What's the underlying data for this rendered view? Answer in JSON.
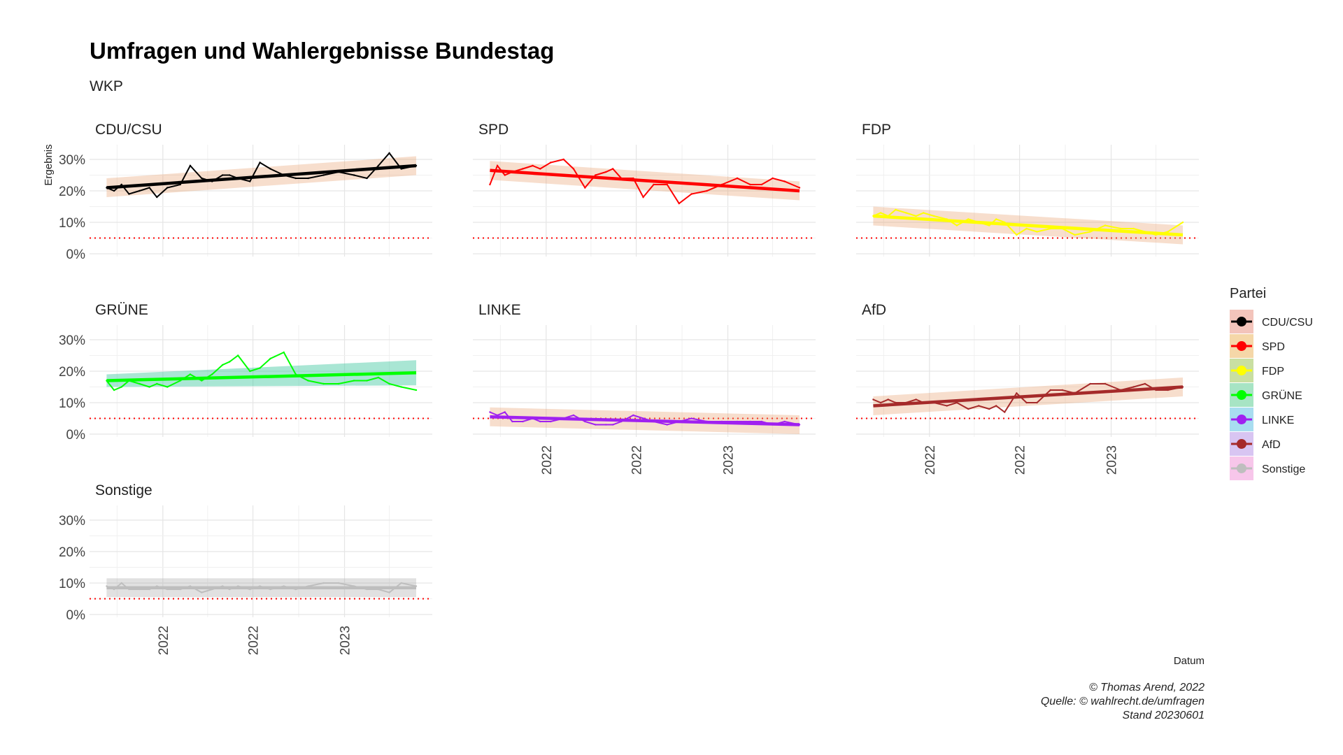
{
  "title": "Umfragen und Wahlergebnisse Bundestag",
  "subtitle": "WKP",
  "caption": [
    "© Thomas Arend, 2022",
    "Quelle: © wahlrecht.de/umfragen",
    "Stand 20230601"
  ],
  "colors": {
    "CDU/CSU": "#000000",
    "SPD": "#ff0000",
    "FDP": "#ffff00",
    "GRÜNE": "#00ff00",
    "LINKE": "#a020f0",
    "AfD": "#a52a2a",
    "Sonstige": "#bebebe",
    "threshold": "#ff0000",
    "grid": "#e5e5e5"
  },
  "chart_data": {
    "type": "line",
    "facet_layout": "wrap 3 columns",
    "xlabel": "Datum",
    "ylabel": "Ergebnis",
    "ylim": [
      0,
      32
    ],
    "y_ticks": [
      0,
      10,
      20,
      30
    ],
    "y_tick_labels": [
      "0%",
      "10%",
      "20%",
      "30%"
    ],
    "x_range": [
      "2021-09-01",
      "2023-06-01"
    ],
    "x_tick_dates": [
      "2022-01-01",
      "2022-07-01",
      "2023-01-01"
    ],
    "x_tick_labels": [
      "2022",
      "2022",
      "2023"
    ],
    "threshold": 5,
    "grid": true,
    "legend_title": "Partei",
    "legend_position": "right",
    "series": [
      {
        "name": "CDU/CSU",
        "x": [
          "2021-09-10",
          "2021-09-25",
          "2021-10-10",
          "2021-10-25",
          "2021-11-15",
          "2021-12-05",
          "2021-12-20",
          "2022-01-10",
          "2022-02-05",
          "2022-02-25",
          "2022-03-20",
          "2022-04-10",
          "2022-05-01",
          "2022-05-15",
          "2022-06-01",
          "2022-06-25",
          "2022-07-15",
          "2022-08-05",
          "2022-09-01",
          "2022-09-25",
          "2022-10-20",
          "2022-11-20",
          "2022-12-20",
          "2023-01-20",
          "2023-02-15",
          "2023-03-10",
          "2023-04-01",
          "2023-04-25",
          "2023-05-25"
        ],
        "values": [
          21,
          20,
          22,
          19,
          20,
          21,
          18,
          21,
          22,
          28,
          24,
          23,
          25,
          25,
          24,
          23,
          29,
          27,
          25,
          24,
          24,
          25,
          26,
          25,
          24,
          28,
          32,
          27,
          28
        ],
        "trend": [
          21,
          28
        ]
      },
      {
        "name": "SPD",
        "x": [
          "2021-09-10",
          "2021-09-25",
          "2021-10-10",
          "2021-10-25",
          "2021-11-15",
          "2021-12-05",
          "2021-12-20",
          "2022-01-10",
          "2022-02-05",
          "2022-02-25",
          "2022-03-20",
          "2022-04-10",
          "2022-05-01",
          "2022-05-15",
          "2022-06-01",
          "2022-06-25",
          "2022-07-15",
          "2022-08-05",
          "2022-09-01",
          "2022-09-25",
          "2022-10-20",
          "2022-11-20",
          "2022-12-20",
          "2023-01-20",
          "2023-02-15",
          "2023-03-10",
          "2023-04-01",
          "2023-04-25",
          "2023-05-25"
        ],
        "values": [
          22,
          28,
          25,
          26,
          27,
          28,
          27,
          29,
          30,
          27,
          21,
          25,
          26,
          27,
          24,
          24,
          18,
          22,
          22,
          16,
          19,
          20,
          22,
          24,
          22,
          22,
          24,
          23,
          21
        ],
        "trend": [
          26.5,
          20
        ]
      },
      {
        "name": "FDP",
        "x": [
          "2021-09-10",
          "2021-09-25",
          "2021-10-10",
          "2021-10-25",
          "2021-11-15",
          "2021-12-05",
          "2021-12-20",
          "2022-01-10",
          "2022-02-05",
          "2022-02-25",
          "2022-03-20",
          "2022-04-10",
          "2022-05-01",
          "2022-05-15",
          "2022-06-01",
          "2022-06-25",
          "2022-07-15",
          "2022-08-05",
          "2022-09-01",
          "2022-09-25",
          "2022-10-20",
          "2022-11-20",
          "2022-12-20",
          "2023-01-20",
          "2023-02-15",
          "2023-03-10",
          "2023-04-01",
          "2023-04-25",
          "2023-05-25"
        ],
        "values": [
          12,
          13,
          12,
          14,
          13,
          12,
          13,
          12,
          11,
          9,
          11,
          10,
          9,
          11,
          10,
          6,
          8,
          7,
          8,
          8,
          6,
          7,
          9,
          8,
          8,
          7,
          6,
          7,
          10
        ],
        "trend": [
          12,
          6
        ]
      },
      {
        "name": "GRÜNE",
        "x": [
          "2021-09-10",
          "2021-09-25",
          "2021-10-10",
          "2021-10-25",
          "2021-11-15",
          "2021-12-05",
          "2021-12-20",
          "2022-01-10",
          "2022-02-05",
          "2022-02-25",
          "2022-03-20",
          "2022-04-10",
          "2022-05-01",
          "2022-05-15",
          "2022-06-01",
          "2022-06-25",
          "2022-07-15",
          "2022-08-05",
          "2022-09-01",
          "2022-09-25",
          "2022-10-20",
          "2022-11-20",
          "2022-12-20",
          "2023-01-20",
          "2023-02-15",
          "2023-03-10",
          "2023-04-01",
          "2023-04-25",
          "2023-05-25"
        ],
        "values": [
          17,
          14,
          15,
          17,
          16,
          15,
          16,
          15,
          17,
          19,
          17,
          19,
          22,
          23,
          25,
          20,
          21,
          24,
          26,
          19,
          17,
          16,
          16,
          17,
          17,
          18,
          16,
          15,
          14
        ],
        "trend": [
          17,
          19.5
        ]
      },
      {
        "name": "LINKE",
        "x": [
          "2021-09-10",
          "2021-09-25",
          "2021-10-10",
          "2021-10-25",
          "2021-11-15",
          "2021-12-05",
          "2021-12-20",
          "2022-01-10",
          "2022-02-05",
          "2022-02-25",
          "2022-03-20",
          "2022-04-10",
          "2022-05-01",
          "2022-05-15",
          "2022-06-01",
          "2022-06-25",
          "2022-07-15",
          "2022-08-05",
          "2022-09-01",
          "2022-09-25",
          "2022-10-20",
          "2022-11-20",
          "2022-12-20",
          "2023-01-20",
          "2023-02-15",
          "2023-03-10",
          "2023-04-01",
          "2023-04-25",
          "2023-05-25"
        ],
        "values": [
          7,
          6,
          7,
          4,
          4,
          5,
          4,
          4,
          5,
          6,
          4,
          3,
          3,
          3,
          4,
          6,
          5,
          4,
          3,
          4,
          5,
          4,
          4,
          4,
          4,
          4,
          3,
          4,
          3
        ],
        "trend": [
          5.5,
          3
        ]
      },
      {
        "name": "AfD",
        "x": [
          "2021-09-10",
          "2021-09-25",
          "2021-10-10",
          "2021-10-25",
          "2021-11-15",
          "2021-12-05",
          "2021-12-20",
          "2022-01-10",
          "2022-02-05",
          "2022-02-25",
          "2022-03-20",
          "2022-04-10",
          "2022-05-01",
          "2022-05-15",
          "2022-06-01",
          "2022-06-25",
          "2022-07-15",
          "2022-08-05",
          "2022-09-01",
          "2022-09-25",
          "2022-10-20",
          "2022-11-20",
          "2022-12-20",
          "2023-01-20",
          "2023-02-15",
          "2023-03-10",
          "2023-04-01",
          "2023-04-25",
          "2023-05-25"
        ],
        "values": [
          11,
          10,
          11,
          10,
          10,
          11,
          10,
          10,
          9,
          10,
          8,
          9,
          8,
          9,
          7,
          13,
          10,
          10,
          14,
          14,
          13,
          16,
          16,
          14,
          15,
          16,
          14,
          14,
          15
        ],
        "trend": [
          9,
          15
        ]
      },
      {
        "name": "Sonstige",
        "x": [
          "2021-09-10",
          "2021-09-25",
          "2021-10-10",
          "2021-10-25",
          "2021-11-15",
          "2021-12-05",
          "2021-12-20",
          "2022-01-10",
          "2022-02-05",
          "2022-02-25",
          "2022-03-20",
          "2022-04-10",
          "2022-05-01",
          "2022-05-15",
          "2022-06-01",
          "2022-06-25",
          "2022-07-15",
          "2022-08-05",
          "2022-09-01",
          "2022-09-25",
          "2022-10-20",
          "2022-11-20",
          "2022-12-20",
          "2023-01-20",
          "2023-02-15",
          "2023-03-10",
          "2023-04-01",
          "2023-04-25",
          "2023-05-25"
        ],
        "values": [
          9,
          8,
          10,
          8,
          8,
          8,
          9,
          8,
          8,
          9,
          7,
          8,
          9,
          8,
          9,
          8,
          9,
          8,
          9,
          8,
          9,
          10,
          10,
          9,
          8,
          8,
          7,
          10,
          9
        ],
        "trend": [
          8.5,
          8.5
        ]
      }
    ]
  }
}
